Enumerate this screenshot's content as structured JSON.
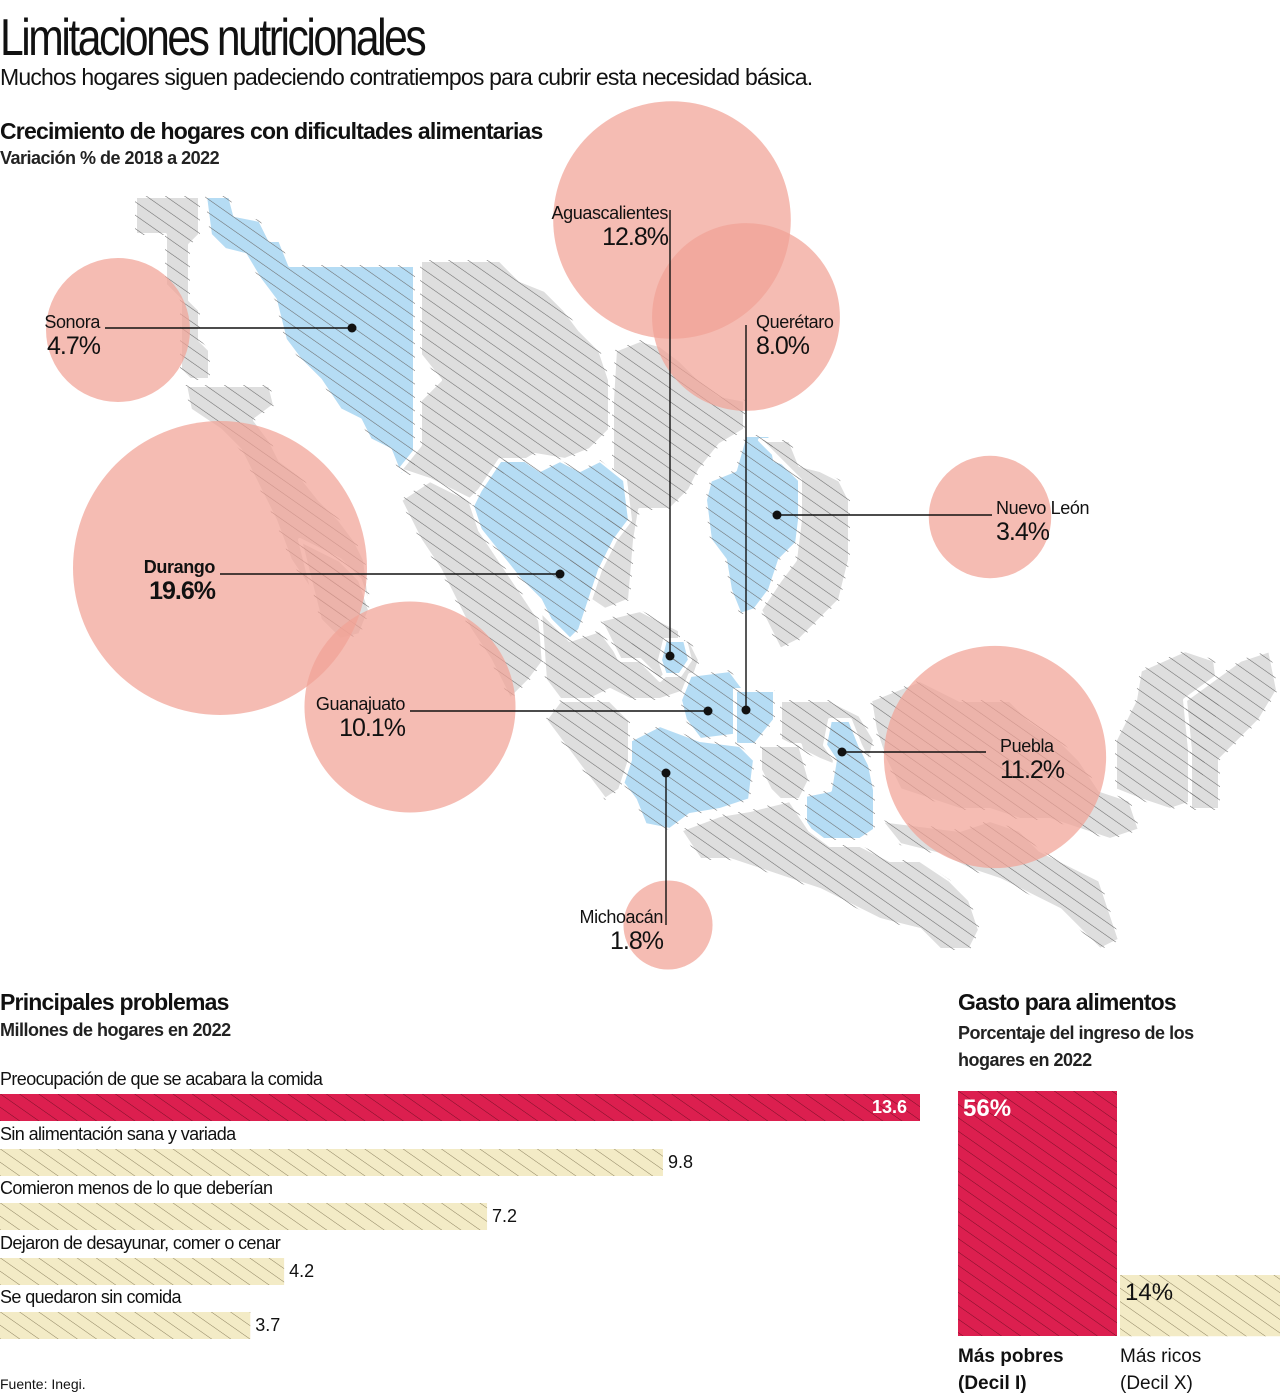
{
  "header": {
    "title": "Limitaciones nutricionales",
    "subtitle": "Muchos hogares siguen padeciendo contratiempos para cubrir esta necesidad básica."
  },
  "colors": {
    "bubble": "#f1a296",
    "map_gray": "#dedede",
    "map_blue": "#b5dcf4",
    "hatch": "#6b6b6b",
    "crimson": "#dc1f4f",
    "cream": "#f3ebc6",
    "text": "#111111"
  },
  "chart_data": [
    {
      "type": "bubble-map",
      "title": "Crecimiento de hogares con dificultades alimentarias",
      "subtitle": "Variación % de 2018 a 2022",
      "unit": "%",
      "highlighted": [
        {
          "state": "Sonora",
          "value": 4.7,
          "label": "4.7%"
        },
        {
          "state": "Aguascalientes",
          "value": 12.8,
          "label": "12.8%"
        },
        {
          "state": "Querétaro",
          "value": 8.0,
          "label": "8.0%"
        },
        {
          "state": "Nuevo León",
          "value": 3.4,
          "label": "3.4%"
        },
        {
          "state": "Durango",
          "value": 19.6,
          "label": "19.6%",
          "emphasis": true
        },
        {
          "state": "Guanajuato",
          "value": 10.1,
          "label": "10.1%"
        },
        {
          "state": "Puebla",
          "value": 11.2,
          "label": "11.2%"
        },
        {
          "state": "Michoacán",
          "value": 1.8,
          "label": "1.8%"
        }
      ]
    },
    {
      "type": "bar",
      "orientation": "horizontal",
      "title": "Principales problemas",
      "subtitle": "Millones de hogares en 2022",
      "categories": [
        "Preocupación de que se acabara la comida",
        "Sin alimentación sana y variada",
        "Comieron menos de lo que deberían",
        "Dejaron de desayunar, comer o cenar",
        "Se quedaron sin comida"
      ],
      "values": [
        13.6,
        9.8,
        7.2,
        4.2,
        3.7
      ],
      "value_labels": [
        "13.6",
        "9.8",
        "7.2",
        "4.2",
        "3.7"
      ],
      "highlight_index": 0,
      "xlim": [
        0,
        13.6
      ]
    },
    {
      "type": "bar",
      "orientation": "vertical",
      "title": "Gasto para alimentos",
      "subtitle": "Porcentaje del ingreso de los hogares en 2022",
      "categories": [
        "Más pobres (Decil I)",
        "Más ricos (Decil X)"
      ],
      "category_lines": [
        [
          "Más pobres",
          "(Decil I)"
        ],
        [
          "Más ricos",
          "(Decil X)"
        ]
      ],
      "values": [
        56,
        14
      ],
      "value_labels": [
        "56%",
        "14%"
      ],
      "ylim": [
        0,
        56
      ]
    }
  ],
  "footer": {
    "source": "Fuente: Inegi."
  }
}
